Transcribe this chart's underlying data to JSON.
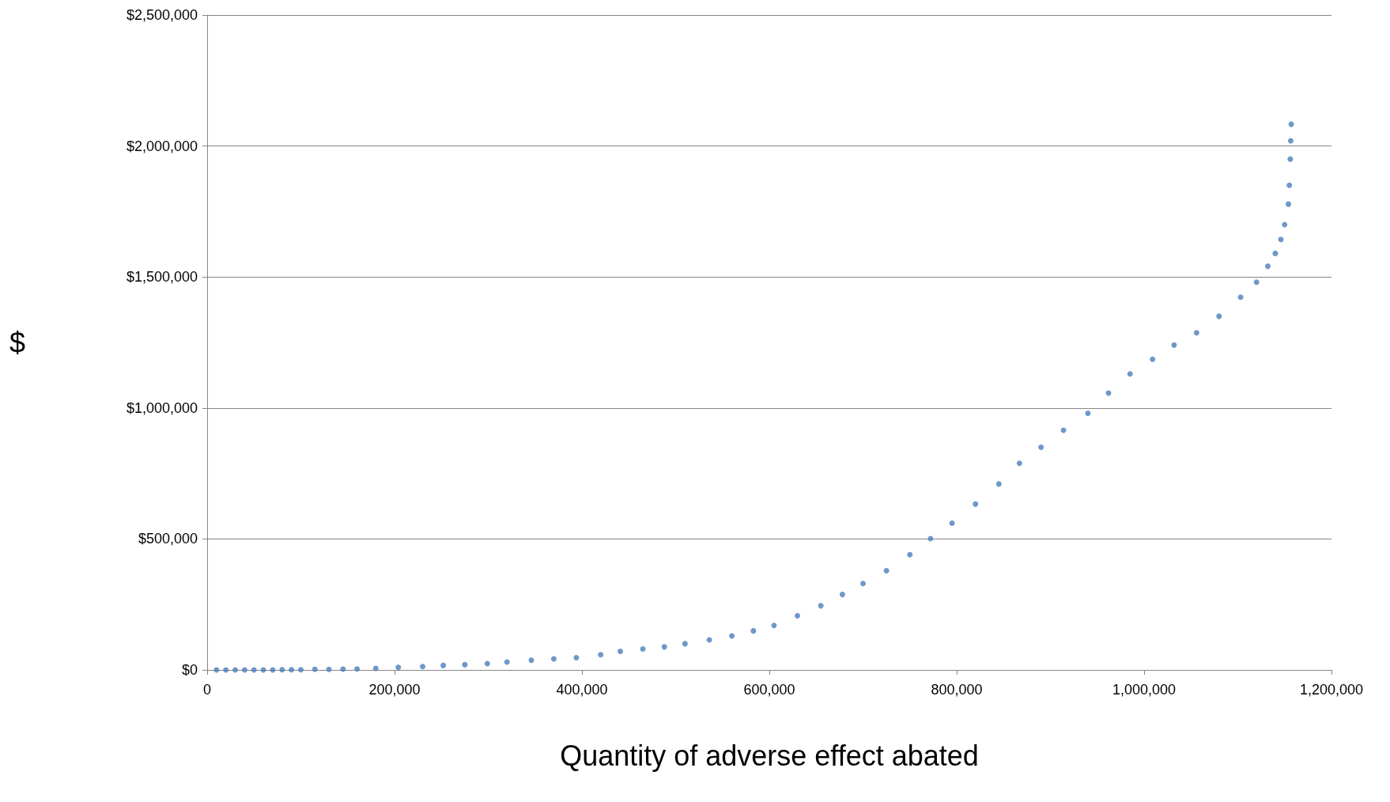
{
  "chart_data": {
    "type": "scatter",
    "xlabel": "Quantity of adverse effect abated",
    "ylabel": "$",
    "marker": "circle",
    "grid": "y",
    "xlim": [
      0,
      1200000
    ],
    "xticks": [
      {
        "value": 0,
        "label": "0"
      },
      {
        "value": 200000,
        "label": "200,000"
      },
      {
        "value": 400000,
        "label": "400,000"
      },
      {
        "value": 600000,
        "label": "600,000"
      },
      {
        "value": 800000,
        "label": "800,000"
      },
      {
        "value": 1000000,
        "label": "1,000,000"
      },
      {
        "value": 1200000,
        "label": "1,200,000"
      }
    ],
    "ylim": [
      0,
      2500000
    ],
    "yticks": [
      {
        "value": 0,
        "label": "$0"
      },
      {
        "value": 500000,
        "label": "$500,000"
      },
      {
        "value": 1000000,
        "label": "$1,000,000"
      },
      {
        "value": 1500000,
        "label": "$1,500,000"
      },
      {
        "value": 2000000,
        "label": "$2,000,000"
      },
      {
        "value": 2500000,
        "label": "$2,500,000"
      }
    ],
    "series": [
      {
        "color": "#4a7ebb",
        "x": [
          10000,
          20000,
          30000,
          40000,
          50000,
          60000,
          70000,
          80000,
          90000,
          100000,
          115000,
          130000,
          145000,
          160000,
          180000,
          204000,
          230000,
          252000,
          275000,
          299000,
          320000,
          346000,
          370000,
          394000,
          420000,
          441000,
          465000,
          488000,
          510000,
          536000,
          560000,
          583000,
          605000,
          630000,
          655000,
          678000,
          700000,
          725000,
          750000,
          772000,
          795000,
          820000,
          845000,
          867000,
          890000,
          914000,
          940000,
          962000,
          985000,
          1009000,
          1032000,
          1056000,
          1080000,
          1103000,
          1120000,
          1132000,
          1140000,
          1146000,
          1150000,
          1154000,
          1155000,
          1156000,
          1156500,
          1157000
        ],
        "values": [
          0,
          0,
          0,
          0,
          0,
          0,
          0,
          1000,
          1000,
          1000,
          2000,
          2000,
          3000,
          4000,
          6000,
          10000,
          13000,
          17000,
          20000,
          24000,
          30000,
          37000,
          42000,
          47000,
          58000,
          71000,
          80000,
          88000,
          100000,
          115000,
          130000,
          149000,
          170000,
          207000,
          245000,
          288000,
          330000,
          379000,
          440000,
          501000,
          560000,
          633000,
          710000,
          789000,
          850000,
          915000,
          980000,
          1057000,
          1130000,
          1186000,
          1240000,
          1287000,
          1350000,
          1423000,
          1480000,
          1541000,
          1590000,
          1643000,
          1700000,
          1778000,
          1850000,
          1950000,
          2020000,
          2083000
        ]
      }
    ]
  }
}
